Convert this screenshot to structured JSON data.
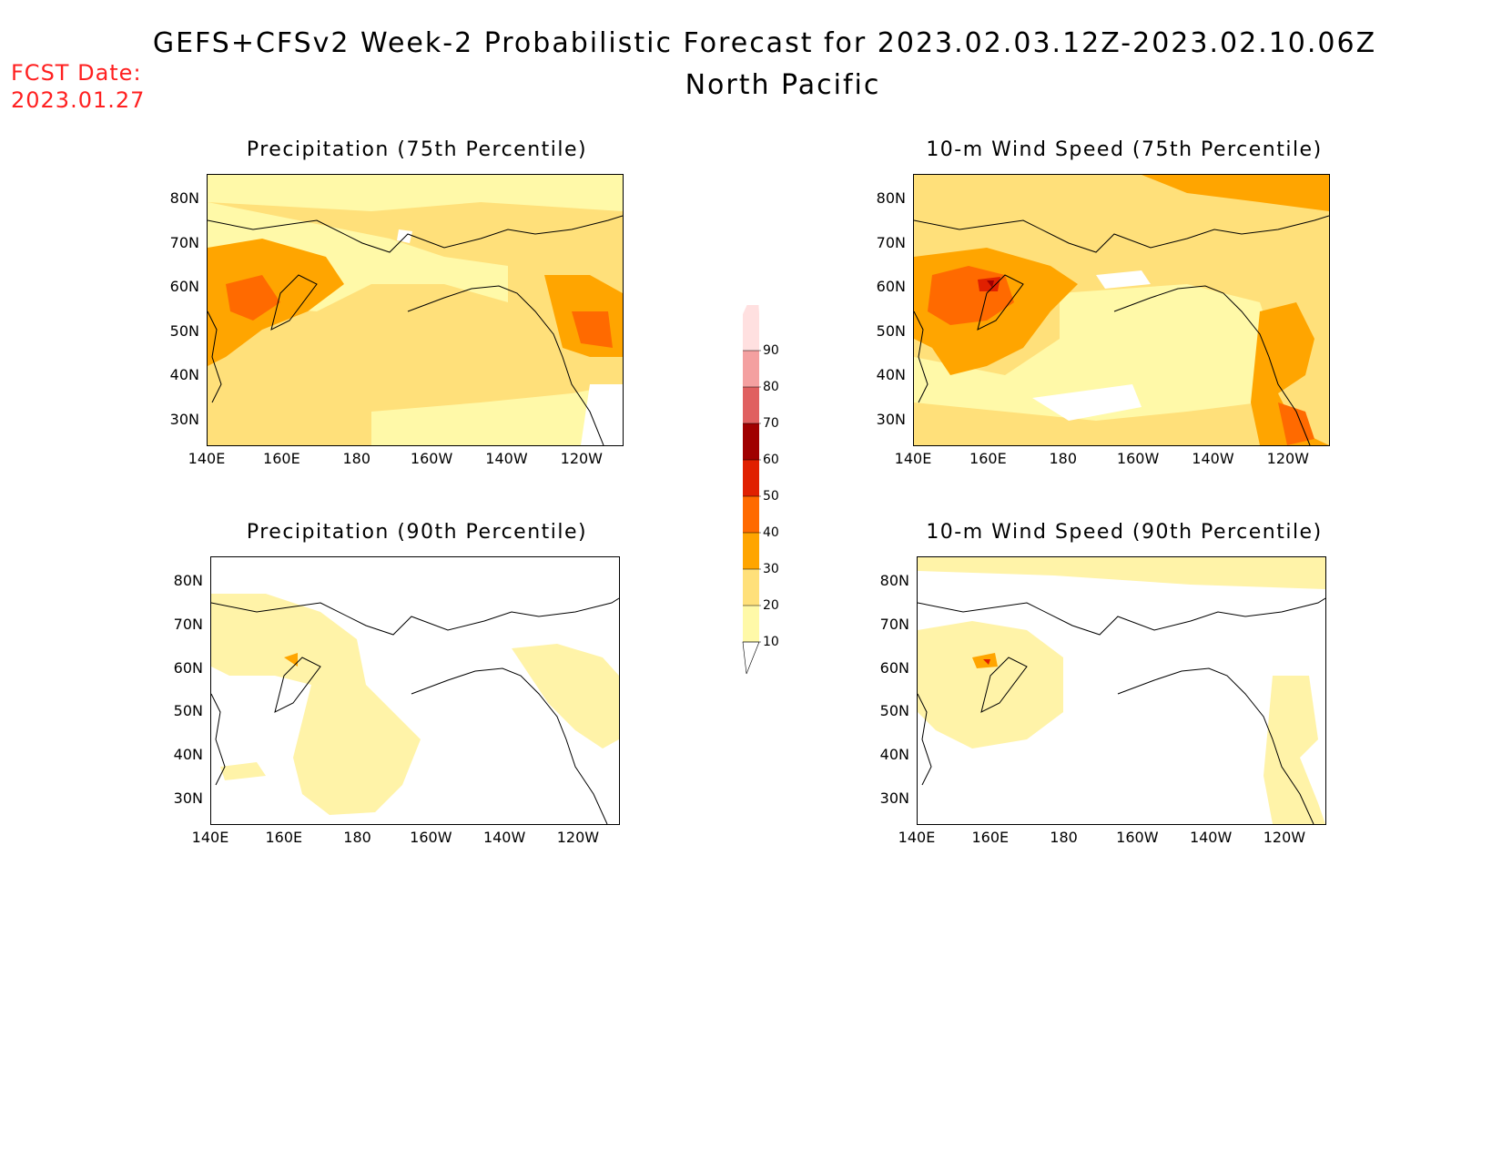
{
  "header": {
    "title": "GEFS+CFSv2 Week-2 Probabilistic Forecast for 2023.02.03.12Z-2023.02.10.06Z",
    "subtitle": "North Pacific",
    "fcst_label": "FCST Date:",
    "fcst_date": "2023.01.27"
  },
  "panels": [
    {
      "id": "precip75",
      "title": "Precipitation (75th Percentile)"
    },
    {
      "id": "wind75",
      "title": "10-m Wind Speed (75th Percentile)"
    },
    {
      "id": "precip90",
      "title": "Precipitation (90th Percentile)"
    },
    {
      "id": "wind90",
      "title": "10-m Wind Speed (90th Percentile)"
    }
  ],
  "axes": {
    "lat_labels": [
      "80N",
      "70N",
      "60N",
      "50N",
      "40N",
      "30N"
    ],
    "lon_labels": [
      "140E",
      "160E",
      "180",
      "160W",
      "140W",
      "120W"
    ]
  },
  "colorbar": {
    "levels": [
      "10",
      "20",
      "30",
      "40",
      "50",
      "60",
      "70",
      "80",
      "90"
    ],
    "colors": [
      "#fff9a8",
      "#ffe07a",
      "#ffa500",
      "#ff6a00",
      "#e02000",
      "#a00000",
      "#e06060",
      "#f4a0a0",
      "#ffe0e0"
    ]
  }
}
